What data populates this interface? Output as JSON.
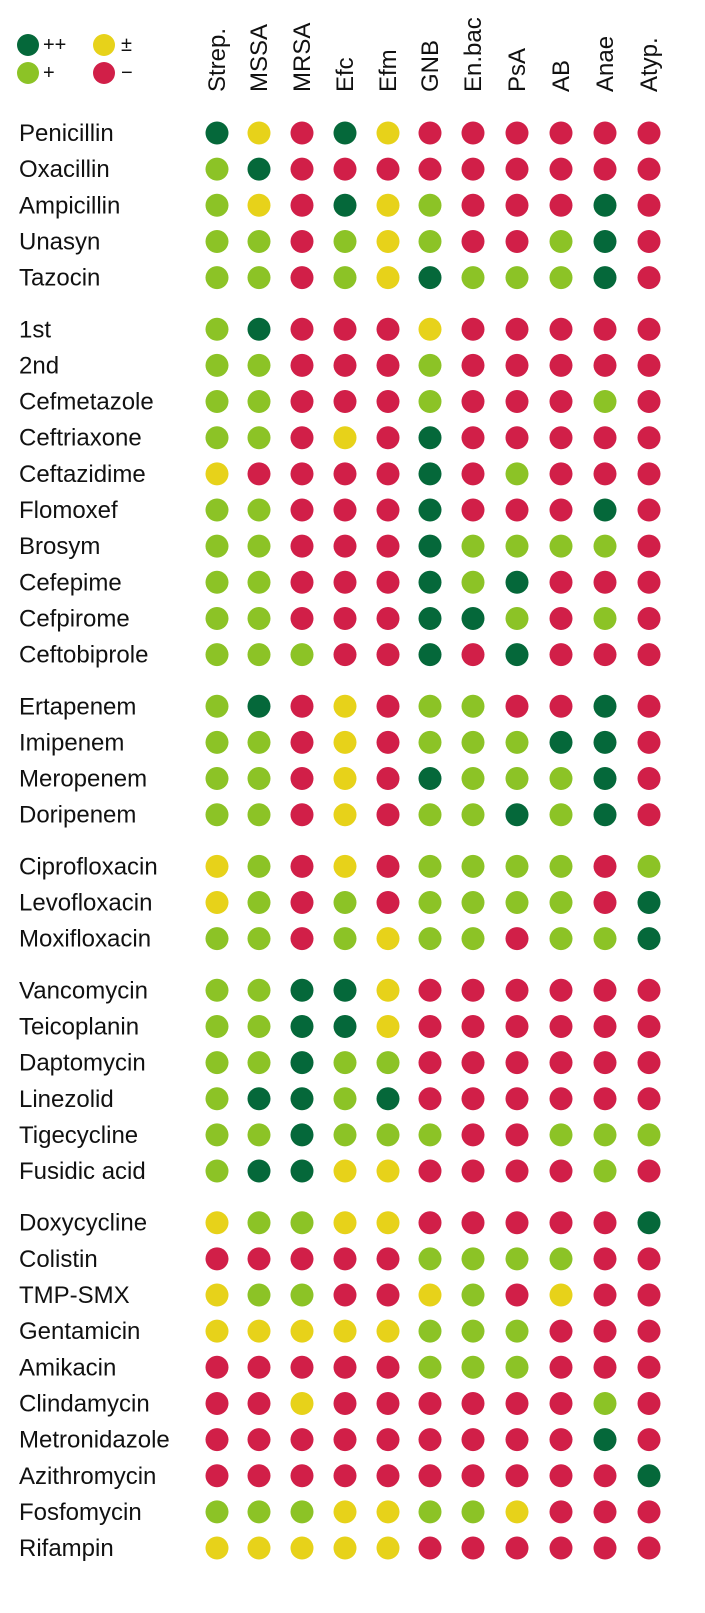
{
  "legend": [
    {
      "symbol": "++",
      "level": "++"
    },
    {
      "symbol": "+",
      "level": "+"
    },
    {
      "symbol": "±",
      "level": "±"
    },
    {
      "symbol": "−",
      "level": "−"
    }
  ],
  "colors": {
    "++": "#05683a",
    "+": "#8cc326",
    "±": "#e7d21a",
    "−": "#d11f48"
  },
  "chart_data": {
    "type": "table",
    "columns": [
      "Strep.",
      "MSSA",
      "MRSA",
      "Efc",
      "Efm",
      "GNB",
      "En.bac",
      "PsA",
      "AB",
      "Anae",
      "Atyp."
    ],
    "groups": [
      {
        "rows": [
          {
            "drug": "Penicillin",
            "values": [
              "++",
              "±",
              "−",
              "++",
              "±",
              "−",
              "−",
              "−",
              "−",
              "−",
              "−"
            ]
          },
          {
            "drug": "Oxacillin",
            "values": [
              "+",
              "++",
              "−",
              "−",
              "−",
              "−",
              "−",
              "−",
              "−",
              "−",
              "−"
            ]
          },
          {
            "drug": "Ampicillin",
            "values": [
              "+",
              "±",
              "−",
              "++",
              "±",
              "+",
              "−",
              "−",
              "−",
              "++",
              "−"
            ]
          },
          {
            "drug": "Unasyn",
            "values": [
              "+",
              "+",
              "−",
              "+",
              "±",
              "+",
              "−",
              "−",
              "+",
              "++",
              "−"
            ]
          },
          {
            "drug": "Tazocin",
            "values": [
              "+",
              "+",
              "−",
              "+",
              "±",
              "++",
              "+",
              "+",
              "+",
              "++",
              "−"
            ]
          }
        ]
      },
      {
        "rows": [
          {
            "drug": "1st",
            "values": [
              "+",
              "++",
              "−",
              "−",
              "−",
              "±",
              "−",
              "−",
              "−",
              "−",
              "−"
            ]
          },
          {
            "drug": "2nd",
            "values": [
              "+",
              "+",
              "−",
              "−",
              "−",
              "+",
              "−",
              "−",
              "−",
              "−",
              "−"
            ]
          },
          {
            "drug": "Cefmetazole",
            "values": [
              "+",
              "+",
              "−",
              "−",
              "−",
              "+",
              "−",
              "−",
              "−",
              "+",
              "−"
            ]
          },
          {
            "drug": "Ceftriaxone",
            "values": [
              "+",
              "+",
              "−",
              "±",
              "−",
              "++",
              "−",
              "−",
              "−",
              "−",
              "−"
            ]
          },
          {
            "drug": "Ceftazidime",
            "values": [
              "±",
              "−",
              "−",
              "−",
              "−",
              "++",
              "−",
              "+",
              "−",
              "−",
              "−"
            ]
          },
          {
            "drug": "Flomoxef",
            "values": [
              "+",
              "+",
              "−",
              "−",
              "−",
              "++",
              "−",
              "−",
              "−",
              "++",
              "−"
            ]
          },
          {
            "drug": "Brosym",
            "values": [
              "+",
              "+",
              "−",
              "−",
              "−",
              "++",
              "+",
              "+",
              "+",
              "+",
              "−"
            ]
          },
          {
            "drug": "Cefepime",
            "values": [
              "+",
              "+",
              "−",
              "−",
              "−",
              "++",
              "+",
              "++",
              "−",
              "−",
              "−"
            ]
          },
          {
            "drug": "Cefpirome",
            "values": [
              "+",
              "+",
              "−",
              "−",
              "−",
              "++",
              "++",
              "+",
              "−",
              "+",
              "−"
            ]
          },
          {
            "drug": "Ceftobiprole",
            "values": [
              "+",
              "+",
              "+",
              "−",
              "−",
              "++",
              "−",
              "++",
              "−",
              "−",
              "−"
            ]
          }
        ]
      },
      {
        "rows": [
          {
            "drug": "Ertapenem",
            "values": [
              "+",
              "++",
              "−",
              "±",
              "−",
              "+",
              "+",
              "−",
              "−",
              "++",
              "−"
            ]
          },
          {
            "drug": "Imipenem",
            "values": [
              "+",
              "+",
              "−",
              "±",
              "−",
              "+",
              "+",
              "+",
              "++",
              "++",
              "−"
            ]
          },
          {
            "drug": "Meropenem",
            "values": [
              "+",
              "+",
              "−",
              "±",
              "−",
              "++",
              "+",
              "+",
              "+",
              "++",
              "−"
            ]
          },
          {
            "drug": "Doripenem",
            "values": [
              "+",
              "+",
              "−",
              "±",
              "−",
              "+",
              "+",
              "++",
              "+",
              "++",
              "−"
            ]
          }
        ]
      },
      {
        "rows": [
          {
            "drug": "Ciprofloxacin",
            "values": [
              "±",
              "+",
              "−",
              "±",
              "−",
              "+",
              "+",
              "+",
              "+",
              "−",
              "+"
            ]
          },
          {
            "drug": "Levofloxacin",
            "values": [
              "±",
              "+",
              "−",
              "+",
              "−",
              "+",
              "+",
              "+",
              "+",
              "−",
              "++"
            ]
          },
          {
            "drug": "Moxifloxacin",
            "values": [
              "+",
              "+",
              "−",
              "+",
              "±",
              "+",
              "+",
              "−",
              "+",
              "+",
              "++"
            ]
          }
        ]
      },
      {
        "rows": [
          {
            "drug": "Vancomycin",
            "values": [
              "+",
              "+",
              "++",
              "++",
              "±",
              "−",
              "−",
              "−",
              "−",
              "−",
              "−"
            ]
          },
          {
            "drug": "Teicoplanin",
            "values": [
              "+",
              "+",
              "++",
              "++",
              "±",
              "−",
              "−",
              "−",
              "−",
              "−",
              "−"
            ]
          },
          {
            "drug": "Daptomycin",
            "values": [
              "+",
              "+",
              "++",
              "+",
              "+",
              "−",
              "−",
              "−",
              "−",
              "−",
              "−"
            ]
          },
          {
            "drug": "Linezolid",
            "values": [
              "+",
              "++",
              "++",
              "+",
              "++",
              "−",
              "−",
              "−",
              "−",
              "−",
              "−"
            ]
          },
          {
            "drug": "Tigecycline",
            "values": [
              "+",
              "+",
              "++",
              "+",
              "+",
              "+",
              "−",
              "−",
              "+",
              "+",
              "+"
            ]
          },
          {
            "drug": "Fusidic acid",
            "values": [
              "+",
              "++",
              "++",
              "±",
              "±",
              "−",
              "−",
              "−",
              "−",
              "+",
              "−"
            ]
          }
        ]
      },
      {
        "rows": [
          {
            "drug": "Doxycycline",
            "values": [
              "±",
              "+",
              "+",
              "±",
              "±",
              "−",
              "−",
              "−",
              "−",
              "−",
              "++"
            ]
          },
          {
            "drug": "Colistin",
            "values": [
              "−",
              "−",
              "−",
              "−",
              "−",
              "+",
              "+",
              "+",
              "+",
              "−",
              "−"
            ]
          },
          {
            "drug": "TMP-SMX",
            "values": [
              "±",
              "+",
              "+",
              "−",
              "−",
              "±",
              "+",
              "−",
              "±",
              "−",
              "−"
            ]
          },
          {
            "drug": "Gentamicin",
            "values": [
              "±",
              "±",
              "±",
              "±",
              "±",
              "+",
              "+",
              "+",
              "−",
              "−",
              "−"
            ]
          },
          {
            "drug": "Amikacin",
            "values": [
              "−",
              "−",
              "−",
              "−",
              "−",
              "+",
              "+",
              "+",
              "−",
              "−",
              "−"
            ]
          },
          {
            "drug": "Clindamycin",
            "values": [
              "−",
              "−",
              "±",
              "−",
              "−",
              "−",
              "−",
              "−",
              "−",
              "+",
              "−"
            ]
          },
          {
            "drug": "Metronidazole",
            "values": [
              "−",
              "−",
              "−",
              "−",
              "−",
              "−",
              "−",
              "−",
              "−",
              "++",
              "−"
            ]
          },
          {
            "drug": "Azithromycin",
            "values": [
              "−",
              "−",
              "−",
              "−",
              "−",
              "−",
              "−",
              "−",
              "−",
              "−",
              "++"
            ]
          },
          {
            "drug": "Fosfomycin",
            "values": [
              "+",
              "+",
              "+",
              "±",
              "±",
              "+",
              "+",
              "±",
              "−",
              "−",
              "−"
            ]
          },
          {
            "drug": "Rifampin",
            "values": [
              "±",
              "±",
              "±",
              "±",
              "±",
              "−",
              "−",
              "−",
              "−",
              "−",
              "−"
            ]
          }
        ]
      }
    ]
  }
}
